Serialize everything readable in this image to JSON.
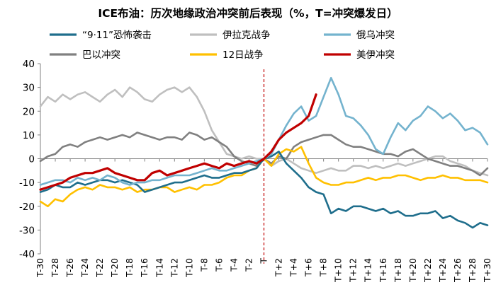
{
  "chart_data": {
    "type": "line",
    "title": "ICE布油：历次地缘政治冲突前后表现（%，T=冲突爆发日）",
    "xlabel": "",
    "ylabel": "",
    "ylim": [
      -40,
      40
    ],
    "yticks": [
      40,
      30,
      20,
      10,
      0,
      -10,
      -20,
      -30,
      -40
    ],
    "event_day": "T",
    "x_tick_labels": [
      "T-30",
      "T-28",
      "T-26",
      "T-24",
      "T-22",
      "T-20",
      "T-18",
      "T-16",
      "T-14",
      "T-12",
      "T-10",
      "T-8",
      "T-6",
      "T-4",
      "T-2",
      "T",
      "T+2",
      "T+4",
      "T+6",
      "T+8",
      "T+10",
      "T+12",
      "T+14",
      "T+16",
      "T+18",
      "T+20",
      "T+22",
      "T+24",
      "T+26",
      "T+28",
      "T+30"
    ],
    "x_offsets": [
      -30,
      -29,
      -28,
      -27,
      -26,
      -25,
      -24,
      -23,
      -22,
      -21,
      -20,
      -19,
      -18,
      -17,
      -16,
      -15,
      -14,
      -13,
      -12,
      -11,
      -10,
      -9,
      -8,
      -7,
      -6,
      -5,
      -4,
      -3,
      -2,
      -1,
      0,
      1,
      2,
      3,
      4,
      5,
      6,
      7,
      8,
      9,
      10,
      11,
      12,
      13,
      14,
      15,
      16,
      17,
      18,
      19,
      20,
      21,
      22,
      23,
      24,
      25,
      26,
      27,
      28,
      29,
      30
    ],
    "legend_position": "top",
    "series": [
      {
        "name": "“9·11”恐怖袭击",
        "color": "#1F6E8C",
        "values": [
          -14,
          -13,
          -11,
          -12,
          -12,
          -10,
          -11,
          -10,
          -9,
          -9,
          -10,
          -9,
          -10,
          -11,
          -14,
          -13,
          -12,
          -11,
          -10,
          -10,
          -9,
          -8,
          -7,
          -8,
          -8,
          -7,
          -6,
          -6,
          -5,
          -4,
          0,
          1,
          3,
          -2,
          -5,
          -8,
          -12,
          -14,
          -15,
          -23,
          -21,
          -22,
          -20,
          -20,
          -21,
          -22,
          -21,
          -23,
          -22,
          -24,
          -24,
          -23,
          -23,
          -22,
          -25,
          -24,
          -26,
          -27,
          -29,
          -27,
          -28
        ]
      },
      {
        "name": "伊拉克战争",
        "color": "#BFBFBF",
        "values": [
          22,
          26,
          24,
          27,
          25,
          27,
          28,
          26,
          24,
          27,
          29,
          26,
          30,
          28,
          25,
          24,
          27,
          29,
          30,
          28,
          30,
          26,
          20,
          12,
          7,
          2,
          1,
          0,
          1,
          0,
          0,
          -3,
          -1,
          0,
          -2,
          -4,
          -5,
          -6,
          -5,
          -4,
          -5,
          -5,
          -3,
          -3,
          -4,
          -3,
          -4,
          -3,
          -2,
          -3,
          -2,
          -1,
          0,
          1,
          1,
          -1,
          -2,
          -3,
          -5,
          -6,
          -7
        ]
      },
      {
        "name": "俄乌冲突",
        "color": "#74B3CE",
        "values": [
          -11,
          -10,
          -9,
          -9,
          -10,
          -8,
          -9,
          -8,
          -9,
          -7,
          -8,
          -10,
          -11,
          -10,
          -10,
          -9,
          -9,
          -8,
          -7,
          -7,
          -7,
          -6,
          -5,
          -4,
          -5,
          -5,
          -4,
          -3,
          -2,
          -1,
          0,
          2,
          8,
          14,
          19,
          22,
          16,
          18,
          26,
          34,
          27,
          18,
          17,
          14,
          10,
          4,
          2,
          9,
          15,
          12,
          16,
          18,
          22,
          20,
          17,
          19,
          16,
          12,
          13,
          11,
          6
        ]
      },
      {
        "name": "巴以冲突",
        "color": "#808080",
        "values": [
          -1,
          1,
          2,
          5,
          6,
          5,
          7,
          8,
          9,
          8,
          9,
          10,
          9,
          11,
          10,
          9,
          8,
          9,
          9,
          8,
          11,
          10,
          8,
          9,
          7,
          5,
          1,
          -1,
          -2,
          -3,
          0,
          -2,
          1,
          0,
          5,
          7,
          8,
          9,
          10,
          10,
          8,
          6,
          5,
          5,
          4,
          3,
          2,
          2,
          1,
          3,
          4,
          2,
          0,
          -1,
          -2,
          -3,
          -3,
          -4,
          -5,
          -7,
          -4
        ]
      },
      {
        "name": "12日战争",
        "color": "#FFC000",
        "values": [
          -18,
          -20,
          -17,
          -18,
          -15,
          -13,
          -12,
          -13,
          -11,
          -12,
          -12,
          -13,
          -12,
          -14,
          -13,
          -13,
          -12,
          -12,
          -14,
          -13,
          -12,
          -13,
          -11,
          -11,
          -10,
          -8,
          -7,
          -7,
          -5,
          -4,
          0,
          -3,
          2,
          4,
          3,
          5,
          -2,
          -8,
          -10,
          -11,
          -11,
          -10,
          -10,
          -9,
          -8,
          -9,
          -8,
          -8,
          -7,
          -7,
          -8,
          -9,
          -8,
          -8,
          -7,
          -8,
          -8,
          -9,
          -9,
          -9,
          -10
        ]
      },
      {
        "name": "美伊冲突",
        "color": "#C00000",
        "values": [
          -13,
          -12,
          -11,
          -10,
          -8,
          -7,
          -6,
          -6,
          -5,
          -4,
          -6,
          -7,
          -8,
          -9,
          -9,
          -6,
          -5,
          -7,
          -6,
          -5,
          -4,
          -3,
          -2,
          -3,
          -4,
          -2,
          -3,
          -2,
          -1,
          -2,
          0,
          3,
          8,
          11,
          13,
          15,
          18,
          27
        ]
      }
    ]
  }
}
